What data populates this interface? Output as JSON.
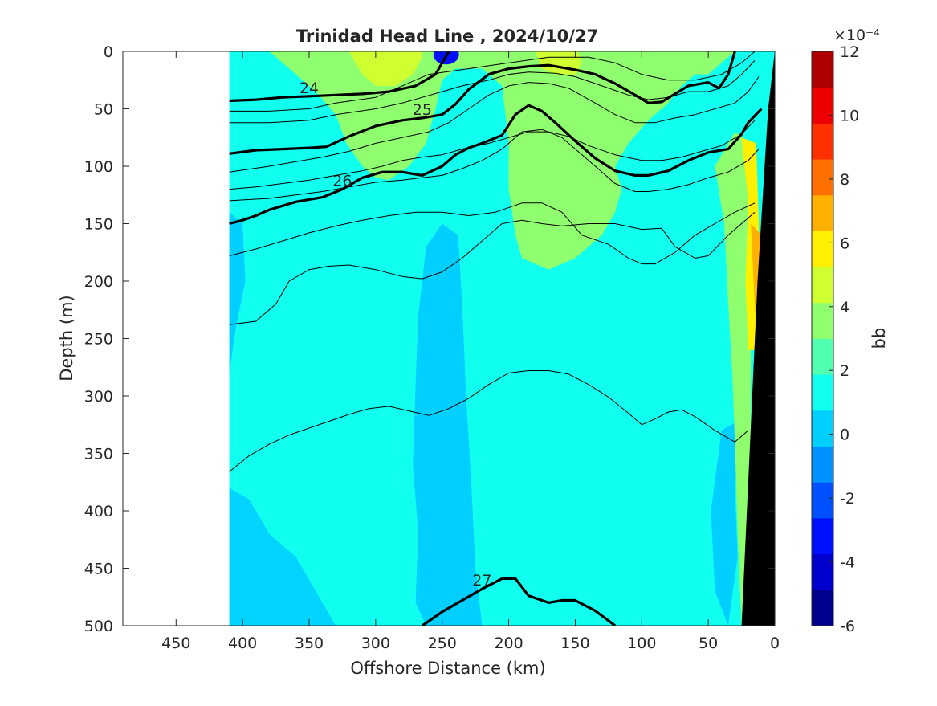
{
  "chart_data": {
    "type": "heatmap",
    "title": "Trinidad Head Line , 2024/10/27",
    "xlabel": "Offshore Distance (km)",
    "ylabel": "Depth (m)",
    "xlim": [
      490,
      0
    ],
    "ylim": [
      0,
      500
    ],
    "x_reversed": true,
    "y_reversed": true,
    "xticks": [
      450,
      400,
      350,
      300,
      250,
      200,
      150,
      100,
      50,
      0
    ],
    "yticks": [
      0,
      50,
      100,
      150,
      200,
      250,
      300,
      350,
      400,
      450,
      500
    ],
    "data_extent_km": [
      410,
      0
    ],
    "colorbar": {
      "label": "bb",
      "exponent": "×10⁻⁴",
      "range": [
        -6,
        12
      ],
      "ticks": [
        -6,
        -4,
        -2,
        0,
        2,
        4,
        6,
        8,
        10,
        12
      ],
      "colors": [
        "#00008f",
        "#0000cf",
        "#0010ff",
        "#0050ff",
        "#0090ff",
        "#00cfff",
        "#10ffef",
        "#50ffaf",
        "#8fff6f",
        "#cfff30",
        "#ffef00",
        "#ffaf00",
        "#ff7000",
        "#ff3000",
        "#ef0000",
        "#af0000"
      ]
    },
    "fields": [
      {
        "name": "background",
        "level": 1.0
      },
      {
        "name": "upper-green-plume",
        "level": 3.0
      },
      {
        "name": "low-column-250km",
        "level": 0.5
      },
      {
        "name": "coastal-yellow",
        "level": 5.5
      },
      {
        "name": "surface-blue-spot",
        "level": -3.0
      }
    ],
    "contours": [
      {
        "label": "24",
        "bold": true,
        "x": [
          410,
          390,
          370,
          350,
          330,
          310,
          290,
          270,
          255,
          245
        ],
        "y": [
          43,
          42,
          40,
          39,
          38,
          37,
          35,
          30,
          20,
          0
        ]
      },
      {
        "label": "25",
        "bold": true,
        "x": [
          410,
          390,
          370,
          350,
          337,
          320,
          300,
          280,
          265,
          250,
          240,
          230,
          215,
          200,
          185,
          170,
          150,
          135,
          120,
          105,
          95,
          85,
          75,
          65,
          50,
          42,
          35,
          30
        ],
        "y": [
          89,
          86,
          85,
          84,
          83,
          74,
          65,
          60,
          58,
          55,
          46,
          33,
          20,
          15,
          13,
          12,
          16,
          20,
          28,
          38,
          45,
          44,
          37,
          30,
          27,
          32,
          20,
          0
        ]
      },
      {
        "label": "26",
        "bold": true,
        "x": [
          410,
          400,
          390,
          380,
          360,
          340,
          325,
          310,
          295,
          280,
          265,
          250,
          240,
          230,
          220,
          205,
          195,
          185,
          175,
          165,
          150,
          135,
          120,
          105,
          95,
          80,
          65,
          50,
          35,
          25,
          20,
          10
        ],
        "y": [
          150,
          147,
          143,
          138,
          131,
          127,
          120,
          110,
          105,
          105,
          108,
          100,
          90,
          84,
          80,
          73,
          55,
          47,
          52,
          62,
          78,
          93,
          104,
          108,
          108,
          104,
          95,
          88,
          85,
          72,
          62,
          50
        ]
      },
      {
        "label": "27",
        "bold": true,
        "x": [
          265,
          250,
          235,
          220,
          205,
          195,
          185,
          170,
          160,
          150,
          135,
          120
        ],
        "y": [
          500,
          488,
          478,
          468,
          459,
          459,
          474,
          480,
          478,
          478,
          487,
          500
        ]
      },
      {
        "label": "",
        "bold": false,
        "x": [
          410,
          380,
          350,
          330,
          300,
          280,
          260,
          230,
          200,
          170,
          140,
          120,
          100,
          80,
          60,
          40,
          25,
          15
        ],
        "y": [
          52,
          52,
          50,
          45,
          40,
          30,
          20,
          15,
          10,
          5,
          5,
          10,
          20,
          25,
          25,
          20,
          10,
          0
        ]
      },
      {
        "label": "",
        "bold": false,
        "x": [
          410,
          380,
          350,
          330,
          300,
          280,
          265,
          250,
          235,
          215,
          200,
          185,
          165,
          150,
          130,
          110,
          95,
          80,
          65,
          50,
          35,
          25,
          15
        ],
        "y": [
          62,
          62,
          60,
          55,
          50,
          45,
          40,
          35,
          30,
          25,
          20,
          18,
          19,
          22,
          30,
          38,
          42,
          40,
          35,
          35,
          30,
          20,
          8
        ]
      },
      {
        "label": "",
        "bold": false,
        "x": [
          410,
          380,
          360,
          340,
          320,
          300,
          280,
          260,
          245,
          230,
          215,
          200,
          185,
          170,
          155,
          135,
          120,
          105,
          90,
          75,
          60,
          45,
          30,
          20,
          12
        ],
        "y": [
          105,
          100,
          96,
          92,
          87,
          80,
          75,
          70,
          62,
          50,
          38,
          30,
          27,
          28,
          32,
          45,
          55,
          62,
          62,
          58,
          55,
          50,
          45,
          35,
          22
        ]
      },
      {
        "label": "",
        "bold": false,
        "x": [
          410,
          390,
          370,
          350,
          330,
          310,
          295,
          280,
          265,
          250,
          235,
          215,
          200,
          185,
          170,
          155,
          140,
          120,
          100,
          85,
          70,
          55,
          40,
          25,
          15
        ],
        "y": [
          120,
          118,
          115,
          112,
          108,
          104,
          100,
          95,
          92,
          90,
          85,
          80,
          75,
          70,
          70,
          74,
          82,
          90,
          95,
          95,
          92,
          87,
          82,
          72,
          60
        ]
      },
      {
        "label": "",
        "bold": false,
        "x": [
          410,
          380,
          360,
          340,
          320,
          300,
          280,
          265,
          250,
          235,
          220,
          205,
          190,
          175,
          160,
          140,
          120,
          105,
          95,
          80,
          65,
          50,
          35,
          20,
          12
        ],
        "y": [
          130,
          128,
          125,
          122,
          118,
          114,
          112,
          110,
          108,
          102,
          95,
          85,
          70,
          68,
          75,
          95,
          115,
          122,
          122,
          120,
          116,
          110,
          105,
          95,
          85
        ]
      },
      {
        "label": "",
        "bold": false,
        "x": [
          410,
          390,
          370,
          350,
          330,
          310,
          290,
          270,
          250,
          230,
          210,
          190,
          175,
          160,
          145,
          125,
          110,
          100,
          90,
          75,
          60,
          45,
          30,
          15
        ],
        "y": [
          178,
          172,
          165,
          158,
          152,
          147,
          143,
          140,
          140,
          143,
          140,
          132,
          132,
          140,
          160,
          168,
          180,
          185,
          185,
          175,
          160,
          150,
          140,
          132
        ]
      },
      {
        "label": "",
        "bold": false,
        "x": [
          410,
          390,
          375,
          365,
          350,
          335,
          320,
          300,
          280,
          265,
          250,
          235,
          220,
          205,
          190,
          175,
          160,
          140,
          120,
          100,
          85,
          75,
          60,
          50,
          35,
          25,
          15
        ],
        "y": [
          238,
          235,
          220,
          200,
          190,
          187,
          186,
          190,
          196,
          198,
          192,
          180,
          165,
          150,
          147,
          150,
          152,
          150,
          150,
          155,
          154,
          170,
          180,
          178,
          160,
          150,
          140
        ]
      },
      {
        "label": "",
        "bold": false,
        "x": [
          410,
          395,
          380,
          365,
          350,
          335,
          320,
          305,
          290,
          275,
          260,
          245,
          230,
          215,
          200,
          185,
          170,
          155,
          140,
          125,
          110,
          100,
          90,
          80,
          70,
          60,
          45,
          30,
          20
        ],
        "y": [
          366,
          352,
          342,
          334,
          328,
          322,
          316,
          311,
          309,
          313,
          317,
          311,
          302,
          290,
          280,
          278,
          278,
          281,
          290,
          301,
          315,
          325,
          320,
          314,
          312,
          318,
          330,
          340,
          330
        ]
      }
    ]
  }
}
